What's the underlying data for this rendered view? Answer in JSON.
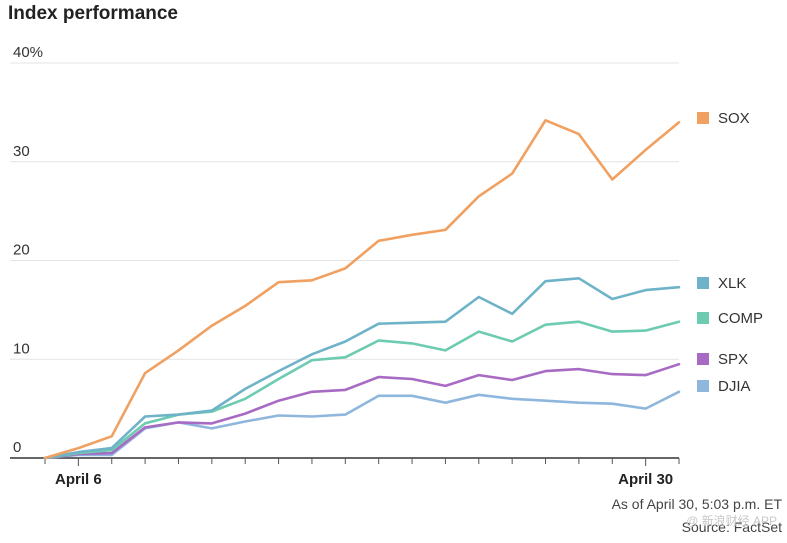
{
  "title": "Index performance",
  "notes": {
    "as_of": "As of April 30, 5:03 p.m. ET",
    "source": "Source: FactSet"
  },
  "watermark": "@ 新浪财经 APP",
  "colors": {
    "SOX": "#f0a061",
    "XLK": "#6fb3c9",
    "COMP": "#6ccbb1",
    "SPX": "#a86bc4",
    "DJIA": "#8fb7dd"
  },
  "chart_data": {
    "type": "line",
    "title": "Index performance",
    "xlabel": "",
    "ylabel": "",
    "ylim": [
      0,
      40
    ],
    "y_ticks": [
      {
        "value": 0,
        "label": "0"
      },
      {
        "value": 10,
        "label": "10"
      },
      {
        "value": 20,
        "label": "20"
      },
      {
        "value": 30,
        "label": "30"
      },
      {
        "value": 40,
        "label": "40%"
      }
    ],
    "x_ticks": [
      {
        "index": 1,
        "label": "April 6"
      },
      {
        "index": 18,
        "label": "April 30"
      }
    ],
    "x_count": 20,
    "grid": true,
    "legend": "right",
    "series": [
      {
        "name": "SOX",
        "values": [
          0,
          1.0,
          2.2,
          8.6,
          10.9,
          13.4,
          15.4,
          17.8,
          18.0,
          19.2,
          22.0,
          22.6,
          23.1,
          26.5,
          28.8,
          34.2,
          32.8,
          28.2,
          31.2,
          34.0
        ]
      },
      {
        "name": "XLK",
        "values": [
          0,
          0.6,
          1.0,
          4.2,
          4.4,
          4.8,
          7.0,
          8.8,
          10.5,
          11.8,
          13.6,
          13.7,
          13.8,
          16.3,
          14.6,
          17.9,
          18.2,
          16.1,
          17.0,
          17.3
        ]
      },
      {
        "name": "COMP",
        "values": [
          0,
          0.5,
          0.8,
          3.5,
          4.4,
          4.7,
          6.0,
          8.0,
          9.9,
          10.2,
          11.9,
          11.6,
          10.9,
          12.8,
          11.8,
          13.5,
          13.8,
          12.8,
          12.9,
          13.8
        ]
      },
      {
        "name": "SPX",
        "values": [
          0,
          0.4,
          0.5,
          3.1,
          3.6,
          3.5,
          4.5,
          5.8,
          6.7,
          6.9,
          8.2,
          8.0,
          7.3,
          8.4,
          7.9,
          8.8,
          9.0,
          8.5,
          8.4,
          9.5
        ]
      },
      {
        "name": "DJIA",
        "values": [
          0,
          0.3,
          0.3,
          3.0,
          3.6,
          3.0,
          3.7,
          4.3,
          4.2,
          4.4,
          6.3,
          6.3,
          5.6,
          6.4,
          6.0,
          5.8,
          5.6,
          5.5,
          5.0,
          6.7
        ]
      }
    ]
  }
}
